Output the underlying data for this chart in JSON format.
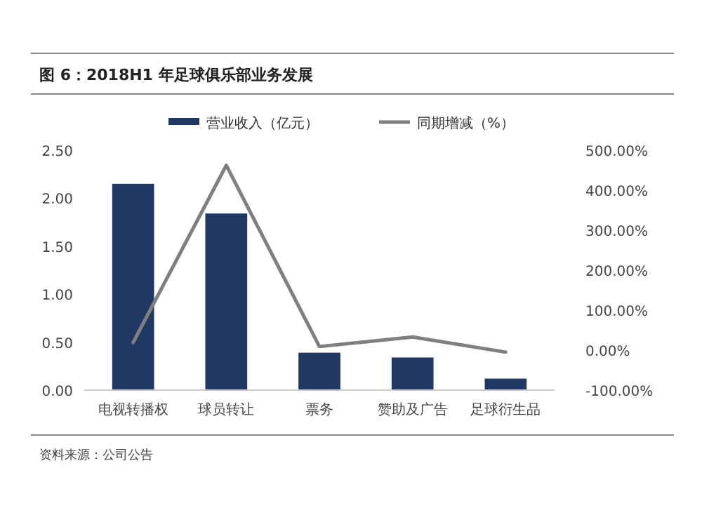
{
  "chart_data": {
    "type": "bar",
    "title": "图 6：2018H1 年足球俱乐部业务发展",
    "categories": [
      "电视转播权",
      "球员转让",
      "票务",
      "赞助及广告",
      "足球衍生品"
    ],
    "series": [
      {
        "name": "营业收入（亿元）",
        "color": "#203864",
        "values": [
          2.15,
          1.84,
          0.39,
          0.34,
          0.12
        ]
      },
      {
        "name": "同期增减（%）",
        "type": "line",
        "axis": "y2",
        "color": "#7f7f7f",
        "values": [
          19,
          462,
          9,
          33,
          -5
        ]
      }
    ],
    "ylim": [
      0,
      2.5
    ],
    "yticks": [
      {
        "value": 0,
        "label": "0.00"
      },
      {
        "value": 0.5,
        "label": "0.50"
      },
      {
        "value": 1,
        "label": "1.00"
      },
      {
        "value": 1.5,
        "label": "1.50"
      },
      {
        "value": 2,
        "label": "2.00"
      },
      {
        "value": 2.5,
        "label": "2.50"
      }
    ],
    "y2lim": [
      -100,
      500
    ],
    "y2ticks": [
      {
        "value": -100,
        "label": "-100.00%"
      },
      {
        "value": 0,
        "label": "0.00%"
      },
      {
        "value": 100,
        "label": "100.00%"
      },
      {
        "value": 200,
        "label": "200.00%"
      },
      {
        "value": 300,
        "label": "300.00%"
      },
      {
        "value": 400,
        "label": "400.00%"
      },
      {
        "value": 500,
        "label": "500.00%"
      }
    ],
    "legend": "top",
    "grid": false,
    "annotations": [
      "资料来源：公司公告"
    ]
  }
}
